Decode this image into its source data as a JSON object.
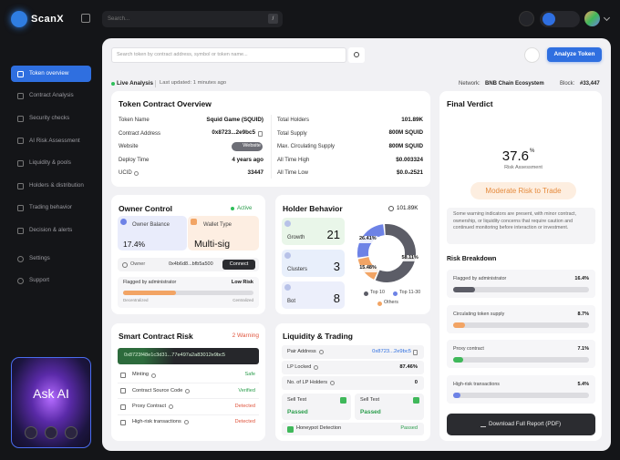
{
  "app": {
    "brand": "ScanX",
    "search_placeholder": "Search...",
    "search_shortcut": "/"
  },
  "sidebar": {
    "nav": [
      "Token overview",
      "Contract Analysis",
      "Security checks",
      "AI Risk Assessment",
      "Liquidity & pools",
      "Holders & distribution",
      "Trading behavior",
      "Decision & alerts"
    ],
    "bottom": [
      "Settings",
      "Support"
    ],
    "ask_ai": "Ask AI"
  },
  "toolbar": {
    "search_placeholder": "Search token by contract address, symbol or token name...",
    "analyze_button": "Analyze Token"
  },
  "status": {
    "live": "Live Analysis",
    "last_updated": "Last updated: 1 minutes ago",
    "network_label": "Network:",
    "network": "BNB Chain Ecosystem",
    "block_label": "Block:",
    "block": "#33,447"
  },
  "overview": {
    "title": "Token Contract Overview",
    "left": [
      {
        "label": "Token Name",
        "value": "Squid Game (SQUID)"
      },
      {
        "label": "Contract Address",
        "value": "0x8723...2e9bc5"
      },
      {
        "label": "Website",
        "value": "Website"
      },
      {
        "label": "Deploy Time",
        "value": "4 years ago"
      },
      {
        "label": "UCID",
        "value": "33447"
      }
    ],
    "right": [
      {
        "label": "Total Holders",
        "value": "101.89K"
      },
      {
        "label": "Total Supply",
        "value": "800M SQUID"
      },
      {
        "label": "Max. Circulating Supply",
        "value": "800M SQUID"
      },
      {
        "label": "All Time High",
        "value": "$0.003324"
      },
      {
        "label": "All Time Low",
        "value": "$0.0₂2521"
      }
    ]
  },
  "owner_control": {
    "title": "Owner Control",
    "status": "Active",
    "balance_label": "Owner Balance",
    "balance": "17.4%",
    "wallet_label": "Wallet Type",
    "wallet": "Multi-sig",
    "owner_label": "Owner",
    "owner_address": "0x4b6d8...bfb5a500",
    "connect_button": "Connect",
    "flag_label": "Flagged by administrator",
    "flag_level": "Low Risk",
    "scale_left": "Decentralized",
    "scale_right": "Centralized"
  },
  "holder_behavior": {
    "title": "Holder Behavior",
    "holders": "101.89K",
    "stats": [
      {
        "label": "Growth",
        "value": "21",
        "color": "#e9f6e9"
      },
      {
        "label": "Clusters",
        "value": "3",
        "color": "#e8effb"
      },
      {
        "label": "Bot",
        "value": "8",
        "color": "#eceffb"
      }
    ],
    "distribution": [
      {
        "name": "Top 10",
        "value": 58.11,
        "label": "58.11%",
        "color": "#5c5d67"
      },
      {
        "name": "Top 11-30",
        "value": 26.41,
        "label": "26.41%",
        "color": "#6d82e6"
      },
      {
        "name": "Others",
        "value": 15.48,
        "label": "15.48%",
        "color": "#f2a464"
      }
    ]
  },
  "smart_contract_risk": {
    "title": "Smart Contract Risk",
    "warnings": "2 Warning",
    "address": "0x8723f48e1c3d31...77e497a2a83012e9bc5",
    "checks": [
      {
        "label": "Minting",
        "status": "Safe",
        "color": "#2a9d4b"
      },
      {
        "label": "Contract Source Code",
        "status": "Verified",
        "color": "#2a9d4b"
      },
      {
        "label": "Proxy Contract",
        "status": "Detected",
        "color": "#e0553d"
      },
      {
        "label": "High-risk transactions",
        "status": "Detected",
        "color": "#e0553d"
      }
    ]
  },
  "liquidity": {
    "title": "Liquidity & Trading",
    "rows": [
      {
        "label": "Pair Address",
        "value": "0x8723...2e9bc5"
      },
      {
        "label": "LP Locked",
        "value": "87.46%"
      },
      {
        "label": "No. of LP Holders",
        "value": "0"
      }
    ],
    "tests": [
      {
        "label": "Sell Test",
        "status": "Passed"
      },
      {
        "label": "Sell Test",
        "status": "Passed"
      }
    ],
    "honeypot": {
      "label": "Honeypot Detection",
      "status": "Passed"
    }
  },
  "final_verdict": {
    "title": "Final Verdict",
    "score": 37.6,
    "score_unit": "%",
    "score_label": "Risk Assessment",
    "verdict": "Moderate Risk to Trade",
    "description": "Some warning indicators are present, with minor contract, ownership, or liquidity concerns that require caution and continued monitoring before interaction or investment.",
    "breakdown_title": "Risk Breakdown",
    "breakdown": [
      {
        "name": "Flagged by administrator",
        "value": 16.4,
        "label": "16.4%",
        "color": "#5c5d67"
      },
      {
        "name": "Circulating token supply",
        "value": 8.7,
        "label": "8.7%",
        "color": "#f2a464"
      },
      {
        "name": "Proxy contract",
        "value": 7.1,
        "label": "7.1%",
        "color": "#3fb85a"
      },
      {
        "name": "High-risk transactions",
        "value": 5.4,
        "label": "5.4%",
        "color": "#6d82e6"
      }
    ],
    "download_button": "Download Full Report (PDF)"
  }
}
